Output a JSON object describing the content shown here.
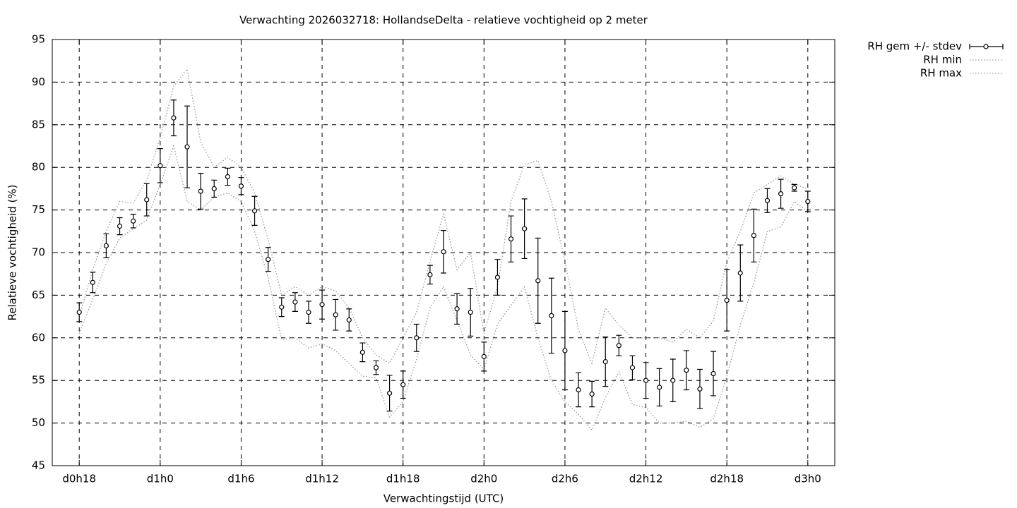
{
  "chart_data": {
    "type": "errorbar",
    "title": "Verwachting 2026032718: HollandseDelta - relatieve vochtigheid op 2 meter",
    "xlabel": "Verwachtingstijd (UTC)",
    "ylabel": "Relatieve vochtigheid (%)",
    "x": [
      18,
      19,
      20,
      21,
      22,
      23,
      24,
      25,
      26,
      27,
      28,
      29,
      30,
      31,
      32,
      33,
      34,
      35,
      36,
      37,
      38,
      39,
      40,
      41,
      42,
      43,
      44,
      45,
      46,
      47,
      48,
      49,
      50,
      51,
      52,
      53,
      54,
      55,
      56,
      57,
      58,
      59,
      60,
      61,
      62,
      63,
      64,
      65,
      66,
      67,
      68,
      69,
      70,
      71,
      72
    ],
    "series": [
      {
        "name": "RH gem +/- stdev",
        "color": "#000000",
        "style": "errorbar",
        "values": [
          63.0,
          66.5,
          70.8,
          73.1,
          73.7,
          76.2,
          80.2,
          85.8,
          82.4,
          77.2,
          77.5,
          78.9,
          77.8,
          74.9,
          69.2,
          63.6,
          64.2,
          63.0,
          63.9,
          62.7,
          62.1,
          58.3,
          56.5,
          53.5,
          54.5,
          60.0,
          67.4,
          70.1,
          63.4,
          63.0,
          57.8,
          67.1,
          71.6,
          72.8,
          66.7,
          62.6,
          58.5,
          53.9,
          53.4,
          57.2,
          59.1,
          56.5,
          55.0,
          54.2,
          55.0,
          56.2,
          54.0,
          55.8,
          64.4,
          67.6,
          72.0,
          76.1,
          76.9,
          77.6,
          76.0
        ],
        "errors": [
          1.1,
          1.2,
          1.4,
          1.0,
          0.8,
          1.9,
          2.0,
          2.1,
          4.8,
          2.1,
          1.0,
          1.0,
          1.0,
          1.7,
          1.4,
          1.1,
          1.1,
          1.3,
          1.7,
          1.8,
          1.3,
          1.1,
          0.8,
          2.1,
          1.6,
          1.6,
          1.1,
          2.5,
          1.8,
          2.8,
          1.7,
          2.1,
          2.7,
          3.5,
          5.0,
          4.4,
          4.6,
          2.0,
          1.5,
          2.9,
          1.2,
          1.4,
          2.1,
          2.2,
          2.5,
          2.3,
          2.3,
          2.6,
          3.6,
          3.3,
          3.1,
          1.4,
          1.7,
          0.4,
          1.2
        ]
      },
      {
        "name": "RH min",
        "color": "#999999",
        "style": "dotted",
        "values": [
          60.5,
          64.5,
          68.7,
          71.7,
          72.8,
          73.8,
          78,
          82.5,
          76,
          75,
          76.5,
          77,
          76,
          72.5,
          67,
          59.8,
          60,
          58.8,
          59.3,
          58.5,
          57,
          55.5,
          55.3,
          50.7,
          52.5,
          57.5,
          63.5,
          66,
          62,
          58,
          56.3,
          61.6,
          63.8,
          66,
          60,
          55,
          52.5,
          51,
          49.2,
          53,
          56,
          52.2,
          51.8,
          50,
          50,
          50.2,
          49.5,
          50.5,
          55.5,
          61.5,
          66.5,
          72.5,
          73,
          76,
          74.8
        ]
      },
      {
        "name": "RH max",
        "color": "#999999",
        "style": "dotted",
        "values": [
          62.5,
          68,
          72.5,
          76,
          75.8,
          78.5,
          83.5,
          89.5,
          91.5,
          83,
          80,
          81.2,
          80,
          77,
          71.5,
          65,
          66,
          65,
          66,
          65.5,
          63.5,
          60,
          58,
          57,
          60,
          63,
          69,
          74.5,
          68,
          70,
          60.5,
          66,
          76,
          80.3,
          80.8,
          76,
          69,
          61,
          57,
          63.5,
          61.5,
          60,
          60,
          60,
          59.5,
          61,
          60,
          62,
          69,
          72.5,
          77,
          78,
          79,
          78,
          77.5
        ]
      }
    ],
    "xlim": [
      16,
      74
    ],
    "xticks": [
      {
        "value": 18,
        "label": "d0h18"
      },
      {
        "value": 24,
        "label": "d1h0"
      },
      {
        "value": 30,
        "label": "d1h6"
      },
      {
        "value": 36,
        "label": "d1h12"
      },
      {
        "value": 42,
        "label": "d1h18"
      },
      {
        "value": 48,
        "label": "d2h0"
      },
      {
        "value": 54,
        "label": "d2h6"
      },
      {
        "value": 60,
        "label": "d2h12"
      },
      {
        "value": 66,
        "label": "d2h18"
      },
      {
        "value": 72,
        "label": "d3h0"
      }
    ],
    "ylim": [
      45,
      95
    ],
    "yticks": [
      45,
      50,
      55,
      60,
      65,
      70,
      75,
      80,
      85,
      90,
      95
    ],
    "grid": true,
    "legend": "outside-top-right"
  }
}
